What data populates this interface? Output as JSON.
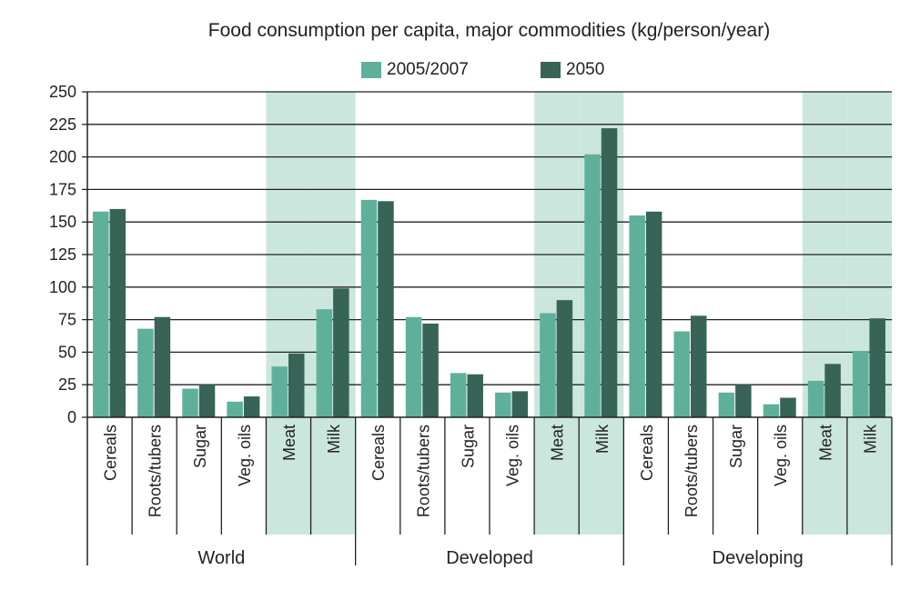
{
  "chart_data": {
    "type": "bar",
    "title": "Food consumption per capita, major commodities (kg/person/year)",
    "xlabel": "",
    "ylabel": "",
    "ylim": [
      0,
      250
    ],
    "yticks": [
      "0",
      "25",
      "50",
      "75",
      "100",
      "125",
      "150",
      "175",
      "200",
      "225",
      "250"
    ],
    "legend_position": "top",
    "grid": true,
    "groups": [
      "World",
      "Developed",
      "Developing"
    ],
    "categories": [
      "Cereals",
      "Roots/tubers",
      "Sugar",
      "Veg. oils",
      "Meat",
      "Milk"
    ],
    "highlighted_categories": [
      "Meat",
      "Milk"
    ],
    "series": [
      {
        "name": "2005/2007",
        "color": "#5fb09b",
        "values": [
          [
            158,
            68,
            22,
            12,
            39,
            83
          ],
          [
            167,
            77,
            34,
            19,
            80,
            202
          ],
          [
            155,
            66,
            19,
            10,
            28,
            51
          ]
        ]
      },
      {
        "name": "2050",
        "color": "#376457",
        "values": [
          [
            160,
            77,
            25,
            16,
            49,
            99
          ],
          [
            166,
            72,
            33,
            20,
            90,
            222
          ],
          [
            158,
            78,
            25,
            15,
            41,
            76
          ]
        ]
      }
    ],
    "colors": {
      "highlight_band": "#cbe7dd",
      "axis": "#222222",
      "grid": "#222222"
    }
  }
}
